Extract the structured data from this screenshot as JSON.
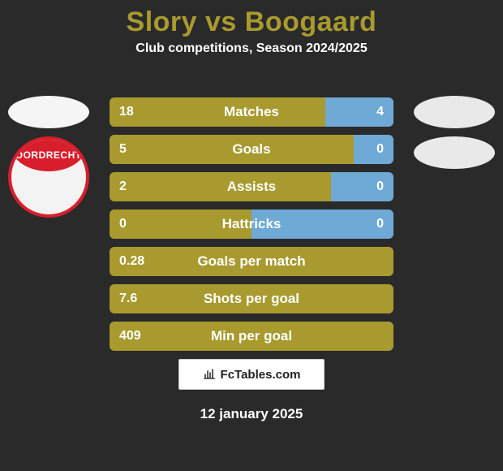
{
  "title_color": "#a99a2f",
  "title": "Slory vs Boogaard",
  "subtitle": "Club competitions, Season 2024/2025",
  "date": "12 january 2025",
  "footer_text": "FcTables.com",
  "logo_text": "DORDRECHT",
  "colors": {
    "bar_left": "#a99a2f",
    "bar_right": "#6fa9d6",
    "bar_full": "#a99a2f",
    "text": "#ffffff"
  },
  "rows": [
    {
      "label": "Matches",
      "left": "18",
      "right": "4",
      "left_pct": 76,
      "right_pct": 24,
      "two_sided": true
    },
    {
      "label": "Goals",
      "left": "5",
      "right": "0",
      "left_pct": 86,
      "right_pct": 14,
      "two_sided": true
    },
    {
      "label": "Assists",
      "left": "2",
      "right": "0",
      "left_pct": 78,
      "right_pct": 22,
      "two_sided": true
    },
    {
      "label": "Hattricks",
      "left": "0",
      "right": "0",
      "left_pct": 50,
      "right_pct": 50,
      "two_sided": true
    },
    {
      "label": "Goals per match",
      "left": "0.28",
      "right": "",
      "left_pct": 100,
      "right_pct": 0,
      "two_sided": false
    },
    {
      "label": "Shots per goal",
      "left": "7.6",
      "right": "",
      "left_pct": 100,
      "right_pct": 0,
      "two_sided": false
    },
    {
      "label": "Min per goal",
      "left": "409",
      "right": "",
      "left_pct": 100,
      "right_pct": 0,
      "two_sided": false
    }
  ]
}
